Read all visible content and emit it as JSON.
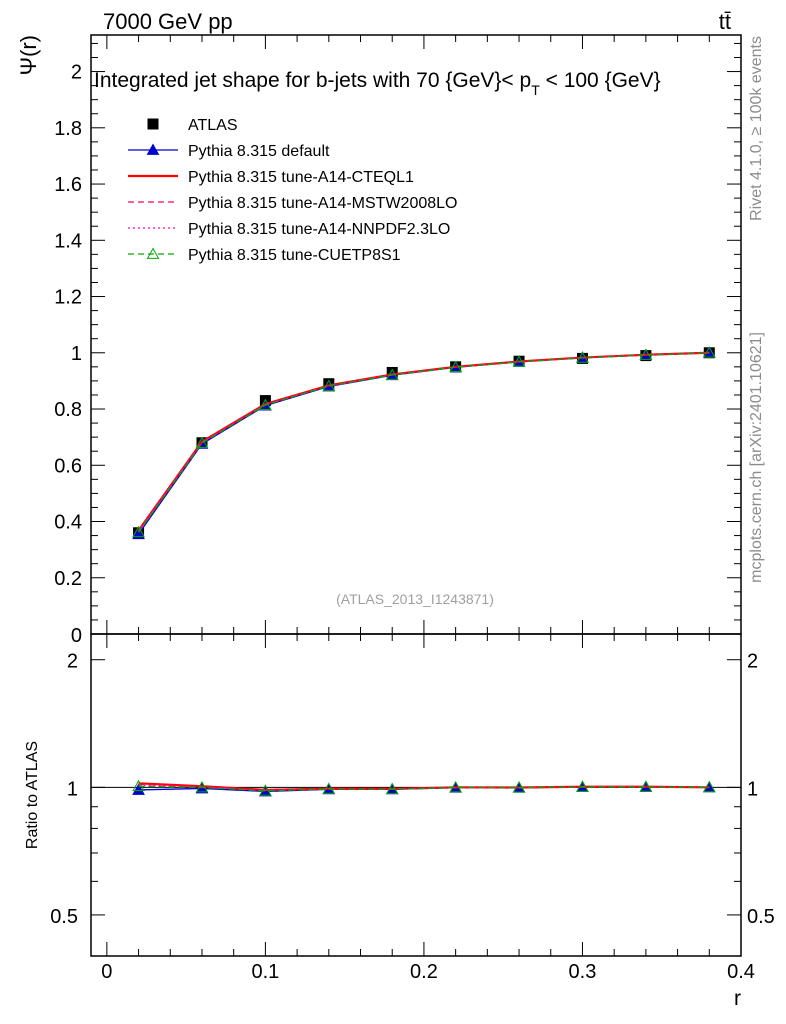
{
  "header": {
    "energy_label": "7000 GeV pp",
    "process_label": "tt̄"
  },
  "side_labels": {
    "rivet": "Rivet 4.1.0, ≥ 100k events",
    "site": "mcplots.cern.ch [arXiv:2401.10621]"
  },
  "chart_data": [
    {
      "panel": "main",
      "type": "line",
      "title": "Integrated jet shape for b-jets with 70 {GeV}< p_T < 100 {GeV}",
      "title_prefix": "Integrated jet shape for b-jets with 70 {GeV}< p",
      "title_sub": "T",
      "title_suffix": " < 100 {GeV}",
      "ylabel": "Ψ(r)",
      "xlabel": "",
      "xlim": [
        -0.01,
        0.4
      ],
      "ylim": [
        0,
        2.13
      ],
      "yticks": [
        0.2,
        0.4,
        0.6,
        0.8,
        1,
        1.2,
        1.4,
        1.6,
        1.8,
        2
      ],
      "ytick_labels": [
        "0.2",
        "0.4",
        "0.6",
        "0.8",
        "1",
        "1.2",
        "1.4",
        "1.6",
        "1.8",
        "2"
      ],
      "ytick_bottom_label": "0",
      "watermark": "(ATLAS_2013_I1243871)",
      "x": [
        0.02,
        0.06,
        0.1,
        0.14,
        0.18,
        0.22,
        0.26,
        0.3,
        0.34,
        0.38
      ],
      "series": [
        {
          "name": "ATLAS",
          "color": "#000000",
          "style": "marker-square",
          "values": [
            0.36,
            0.68,
            0.83,
            0.89,
            0.93,
            0.95,
            0.97,
            0.98,
            0.99,
            1.0
          ]
        },
        {
          "name": "Pythia 8.315 default",
          "color": "#0000cc",
          "style": "solid-triangle",
          "values": [
            0.355,
            0.676,
            0.812,
            0.88,
            0.92,
            0.948,
            0.968,
            0.982,
            0.992,
            1.0
          ]
        },
        {
          "name": "Pythia 8.315 tune-A14-CTEQL1",
          "color": "#ff0000",
          "style": "solid-thick",
          "values": [
            0.368,
            0.684,
            0.818,
            0.884,
            0.923,
            0.95,
            0.969,
            0.983,
            0.993,
            1.0
          ]
        },
        {
          "name": "Pythia 8.315 tune-A14-MSTW2008LO",
          "color": "#ff0066",
          "style": "dashed",
          "values": [
            0.366,
            0.682,
            0.816,
            0.883,
            0.922,
            0.949,
            0.968,
            0.982,
            0.993,
            1.0
          ]
        },
        {
          "name": "Pythia 8.315 tune-A14-NNPDF2.3LO",
          "color": "#ff00cc",
          "style": "dotted",
          "values": [
            0.364,
            0.681,
            0.815,
            0.882,
            0.922,
            0.949,
            0.968,
            0.982,
            0.993,
            1.0
          ]
        },
        {
          "name": "Pythia 8.315 tune-CUETP8S1",
          "color": "#00aa00",
          "style": "dashed-open-triangle",
          "values": [
            0.362,
            0.679,
            0.814,
            0.882,
            0.921,
            0.949,
            0.968,
            0.982,
            0.992,
            1.0
          ]
        }
      ]
    },
    {
      "panel": "ratio",
      "type": "line",
      "ylabel": "Ratio to ATLAS",
      "xlabel": "r",
      "xlim": [
        -0.01,
        0.4
      ],
      "ylim": [
        0.4,
        2.3
      ],
      "scale": "log",
      "yticks": [
        0.5,
        1,
        2
      ],
      "ytick_labels": [
        "0.5",
        "1",
        "2"
      ],
      "xticks": [
        0,
        0.1,
        0.2,
        0.3,
        0.4
      ],
      "xtick_labels": [
        "0",
        "0.1",
        "0.2",
        "0.3",
        "0.4"
      ],
      "x": [
        0.02,
        0.06,
        0.1,
        0.14,
        0.18,
        0.22,
        0.26,
        0.3,
        0.34,
        0.38
      ],
      "series": [
        {
          "name": "Pythia 8.315 default",
          "color": "#0000cc",
          "style": "solid-triangle",
          "values": [
            0.986,
            0.994,
            0.978,
            0.989,
            0.989,
            0.998,
            0.998,
            1.002,
            1.002,
            1.0
          ]
        },
        {
          "name": "Pythia 8.315 tune-A14-CTEQL1",
          "color": "#ff0000",
          "style": "solid-thick",
          "values": [
            1.022,
            1.006,
            0.986,
            0.993,
            0.992,
            1.0,
            0.999,
            1.003,
            1.003,
            1.0
          ]
        },
        {
          "name": "Pythia 8.315 tune-A14-MSTW2008LO",
          "color": "#ff0066",
          "style": "dashed",
          "values": [
            1.017,
            1.003,
            0.983,
            0.992,
            0.991,
            0.999,
            0.998,
            1.002,
            1.003,
            1.0
          ]
        },
        {
          "name": "Pythia 8.315 tune-A14-NNPDF2.3LO",
          "color": "#ff00cc",
          "style": "dotted",
          "values": [
            1.011,
            1.001,
            0.982,
            0.991,
            0.991,
            0.999,
            0.998,
            1.002,
            1.003,
            1.0
          ]
        },
        {
          "name": "Pythia 8.315 tune-CUETP8S1",
          "color": "#00aa00",
          "style": "dashed-open-triangle",
          "values": [
            1.006,
            0.999,
            0.981,
            0.991,
            0.99,
            0.999,
            0.998,
            1.002,
            1.002,
            1.0
          ]
        }
      ]
    }
  ]
}
